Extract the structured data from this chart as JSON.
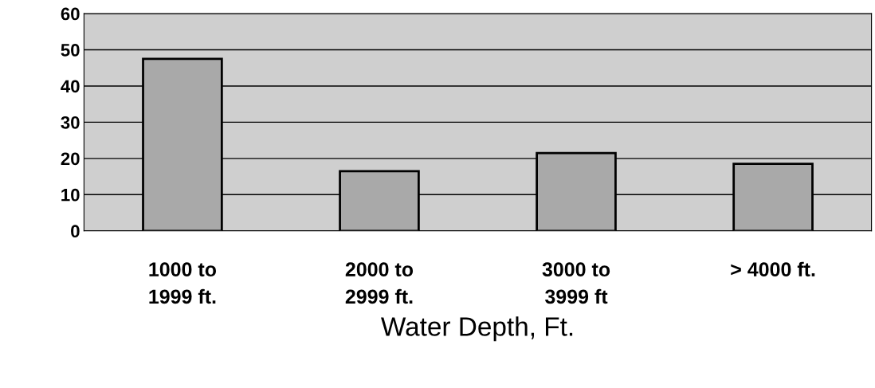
{
  "chart_data": {
    "type": "bar",
    "xlabel": "Water Depth, Ft.",
    "categories": [
      "1000 to\n1999 ft.",
      "2000 to\n2999 ft.",
      "3000 to\n3999 ft",
      "> 4000 ft."
    ],
    "values": [
      47.5,
      16.5,
      21.5,
      18.5
    ],
    "color": "#a9a9a9",
    "ylim": [
      0,
      60
    ],
    "yticks": [
      0,
      10,
      20,
      30,
      40,
      50,
      60
    ],
    "grid": "y"
  }
}
